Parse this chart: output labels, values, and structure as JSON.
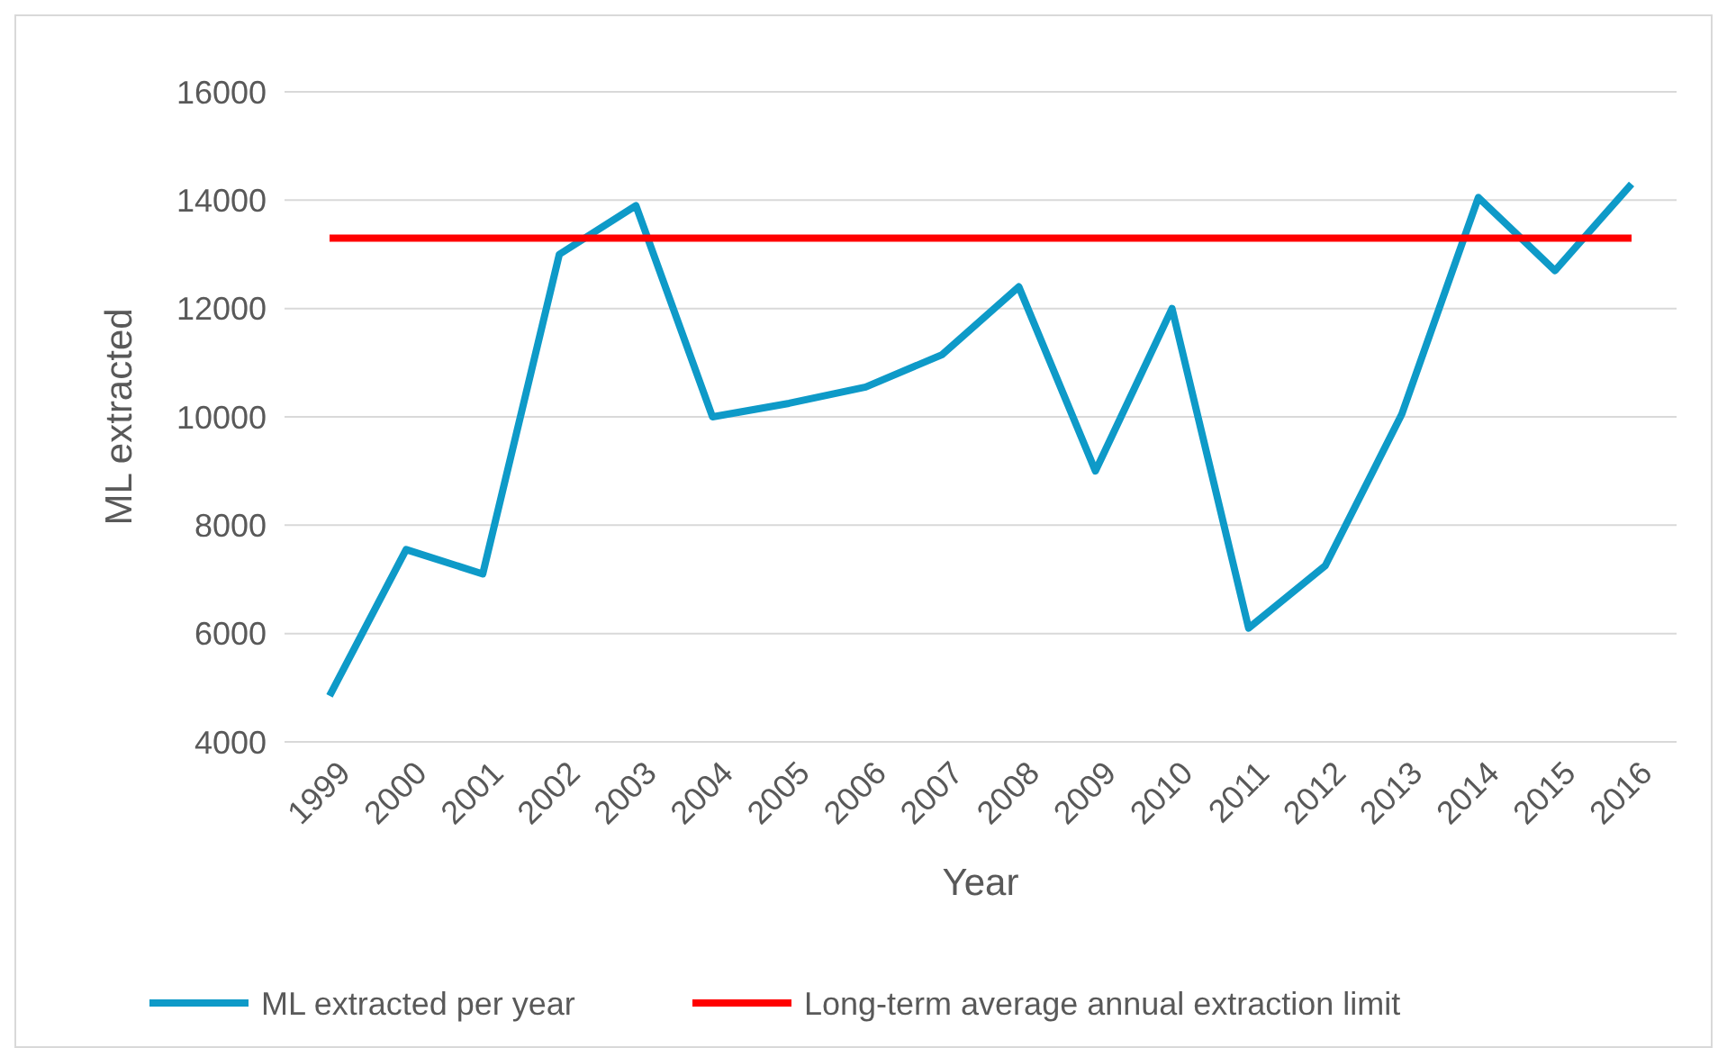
{
  "chart_data": {
    "type": "line",
    "xlabel": "Year",
    "ylabel": "ML extracted",
    "categories": [
      "1999",
      "2000",
      "2001",
      "2002",
      "2003",
      "2004",
      "2005",
      "2006",
      "2007",
      "2008",
      "2009",
      "2010",
      "2011",
      "2012",
      "2013",
      "2014",
      "2015",
      "2016"
    ],
    "series": [
      {
        "name": "ML extracted per year",
        "color": "#0e9ac8",
        "values": [
          4850,
          7550,
          7100,
          13000,
          13900,
          10000,
          10250,
          10550,
          11150,
          12400,
          9000,
          12000,
          6100,
          7250,
          10050,
          14050,
          12700,
          14300
        ]
      },
      {
        "name": "Long-term average annual extraction limit",
        "color": "#ff0000",
        "values": [
          13300,
          13300,
          13300,
          13300,
          13300,
          13300,
          13300,
          13300,
          13300,
          13300,
          13300,
          13300,
          13300,
          13300,
          13300,
          13300,
          13300,
          13300
        ]
      }
    ],
    "ylim": [
      4000,
      16000
    ],
    "yticks": [
      4000,
      6000,
      8000,
      10000,
      12000,
      14000,
      16000
    ],
    "grid": "y",
    "legend": "bottom",
    "marker": "none",
    "line_style": "solid"
  }
}
